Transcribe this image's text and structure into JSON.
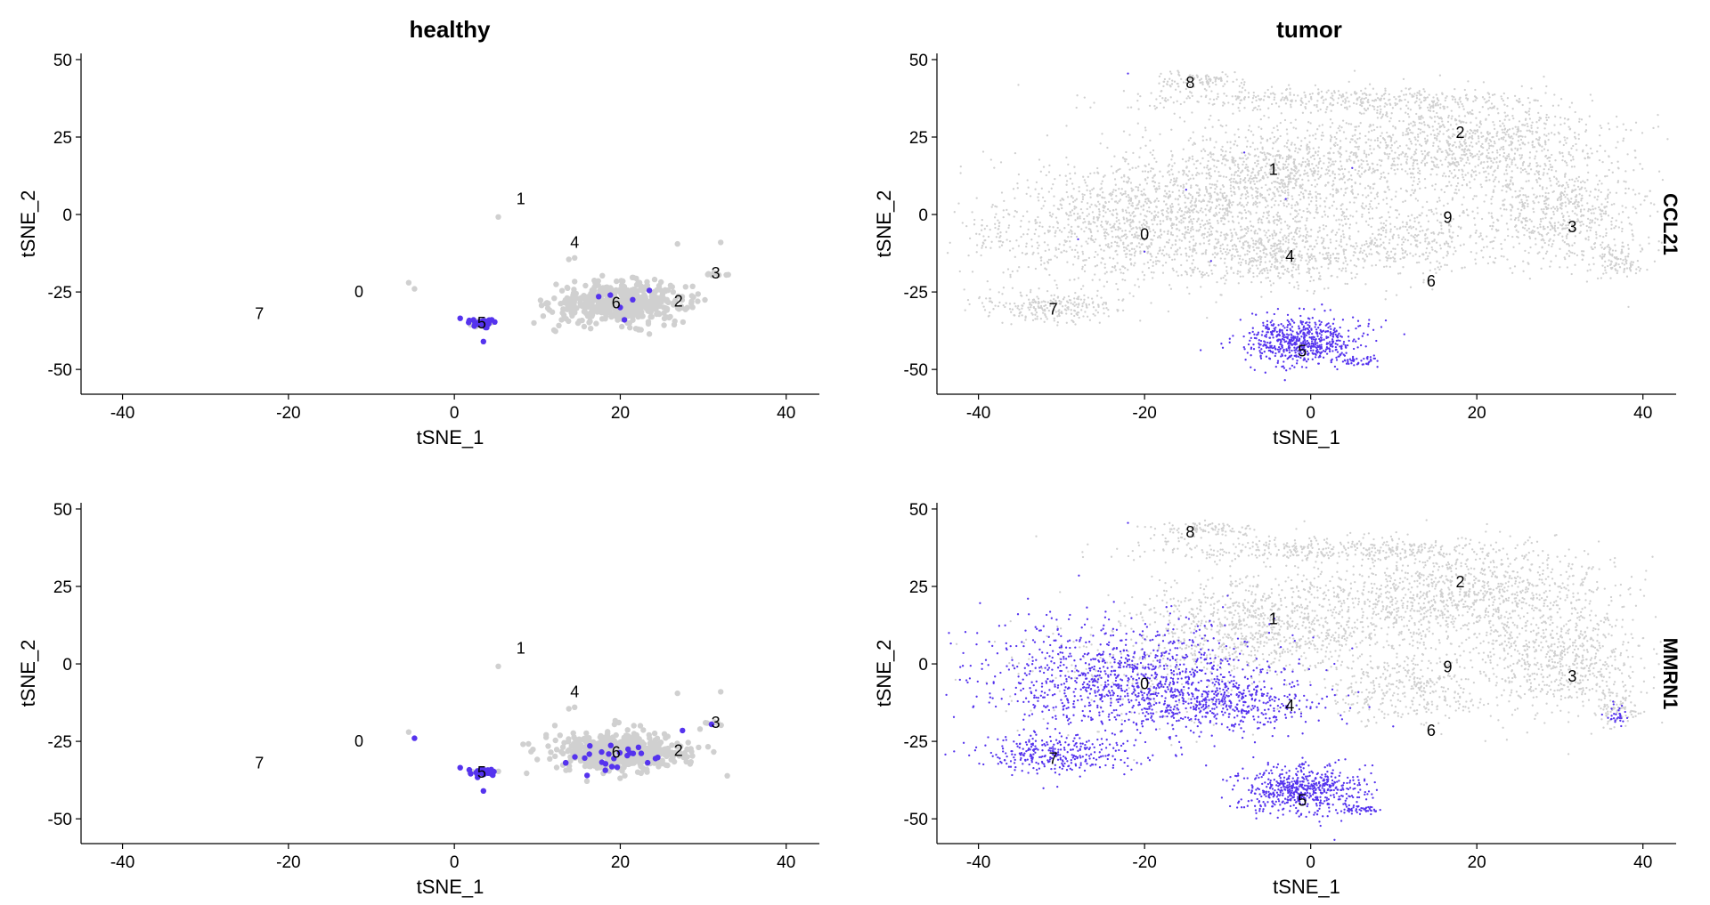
{
  "columns": [
    "healthy",
    "tumor"
  ],
  "rows": [
    "CCL21",
    "MMRN1"
  ],
  "colors": {
    "expressed": "#5533ee",
    "not_expressed": "#d0d0d0"
  },
  "chart_data": [
    {
      "type": "scatter",
      "row": 0,
      "col": 0,
      "title": "healthy",
      "row_label": "",
      "xlabel": "tSNE_1",
      "ylabel": "tSNE_2",
      "xlim": [
        -45,
        44
      ],
      "ylim": [
        -58,
        52
      ],
      "xticks": [
        -40,
        -20,
        0,
        20,
        40
      ],
      "yticks": [
        50,
        25,
        0,
        -25,
        -50
      ],
      "grid": false,
      "point_size": "large",
      "clusters": [
        {
          "label": "0",
          "x": -11.5,
          "y": -25
        },
        {
          "label": "1",
          "x": 8,
          "y": 5
        },
        {
          "label": "2",
          "x": 27,
          "y": -28
        },
        {
          "label": "3",
          "x": 31.5,
          "y": -19
        },
        {
          "label": "4",
          "x": 14.5,
          "y": -9
        },
        {
          "label": "5",
          "x": 3.3,
          "y": -35
        },
        {
          "label": "6",
          "x": 19.5,
          "y": -28.5
        },
        {
          "label": "7",
          "x": -23.5,
          "y": -32
        }
      ],
      "gray_groups": [
        {
          "cx": 20,
          "cy": -28.5,
          "sx": 4,
          "sy": 3.2,
          "n": 500
        },
        {
          "cx": 3.3,
          "cy": -35,
          "sx": 0.8,
          "sy": 0.5,
          "n": 25
        },
        {
          "cx": 31.5,
          "cy": -19,
          "sx": 0.8,
          "sy": 0.6,
          "n": 8
        }
      ],
      "gray_points": [
        [
          5.3,
          -0.8
        ],
        [
          14.5,
          -14
        ],
        [
          26.9,
          -9.5
        ],
        [
          32.1,
          -9
        ],
        [
          -5.5,
          -22
        ],
        [
          -4.8,
          -24
        ],
        [
          13.8,
          -14.5
        ]
      ],
      "expr_groups": [
        {
          "cx": 3.3,
          "cy": -35,
          "sx": 0.9,
          "sy": 0.5,
          "n": 30
        }
      ],
      "expr_points": [
        [
          3.5,
          -41
        ],
        [
          0.7,
          -33.5
        ],
        [
          1.8,
          -34.2
        ],
        [
          2.4,
          -36
        ],
        [
          4.5,
          -34
        ],
        [
          3.9,
          -36.5
        ],
        [
          17.4,
          -26.5
        ],
        [
          20,
          -30
        ],
        [
          21.5,
          -27.5
        ],
        [
          23.5,
          -24.5
        ],
        [
          18.8,
          -26
        ],
        [
          20.5,
          -34
        ]
      ]
    },
    {
      "type": "scatter",
      "row": 0,
      "col": 1,
      "title": "tumor",
      "row_label": "CCL21",
      "xlabel": "tSNE_1",
      "ylabel": "tSNE_2",
      "xlim": [
        -45,
        44
      ],
      "ylim": [
        -58,
        52
      ],
      "xticks": [
        -40,
        -20,
        0,
        20,
        40
      ],
      "yticks": [
        50,
        25,
        0,
        -25,
        -50
      ],
      "grid": false,
      "point_size": "small",
      "clusters": [
        {
          "label": "0",
          "x": -20,
          "y": -6.5
        },
        {
          "label": "1",
          "x": -4.5,
          "y": 14.5
        },
        {
          "label": "2",
          "x": 18,
          "y": 26.5
        },
        {
          "label": "3",
          "x": 31.5,
          "y": -4
        },
        {
          "label": "4",
          "x": -2.5,
          "y": -13.5
        },
        {
          "label": "5",
          "x": -1,
          "y": -44
        },
        {
          "label": "6",
          "x": 14.5,
          "y": -21.5
        },
        {
          "label": "7",
          "x": -31,
          "y": -30.5
        },
        {
          "label": "8",
          "x": -14.5,
          "y": 42.5
        },
        {
          "label": "9",
          "x": 16.5,
          "y": -1
        }
      ],
      "gray_groups": [
        {
          "cx": -20,
          "cy": -3,
          "sx": 9,
          "sy": 10,
          "n": 1300
        },
        {
          "cx": -5,
          "cy": 13,
          "sx": 8,
          "sy": 8,
          "n": 1000
        },
        {
          "cx": 18,
          "cy": 22,
          "sx": 9,
          "sy": 8,
          "n": 1100
        },
        {
          "cx": 30,
          "cy": 0,
          "sx": 5,
          "sy": 8,
          "n": 600
        },
        {
          "cx": -3,
          "cy": -13,
          "sx": 5,
          "sy": 5,
          "n": 450
        },
        {
          "cx": 12,
          "cy": -8,
          "sx": 5,
          "sy": 6,
          "n": 350
        },
        {
          "cx": 37,
          "cy": -15,
          "sx": 1.5,
          "sy": 3,
          "n": 100
        },
        {
          "cx": -31,
          "cy": -30,
          "sx": 4,
          "sy": 2.5,
          "n": 250
        },
        {
          "cx": -13,
          "cy": 43.5,
          "sx": 3,
          "sy": 1.3,
          "n": 100
        },
        {
          "cx": 2,
          "cy": 37,
          "sx": 12,
          "sy": 2,
          "n": 400
        },
        {
          "cx": -38,
          "cy": -6,
          "sx": 1.5,
          "sy": 3,
          "n": 40
        }
      ],
      "gray_points": [],
      "expr_groups": [
        {
          "cx": -1,
          "cy": -41,
          "sx": 3.6,
          "sy": 3.8,
          "n": 600
        },
        {
          "cx": 6,
          "cy": -47,
          "sx": 1.3,
          "sy": 0.8,
          "n": 40
        }
      ],
      "expr_points": [
        [
          -22,
          45.5
        ],
        [
          -20,
          -12
        ],
        [
          -15,
          8
        ],
        [
          -8,
          20
        ],
        [
          -3,
          5
        ],
        [
          5,
          15
        ],
        [
          -28,
          -8
        ],
        [
          -12,
          -15
        ]
      ]
    },
    {
      "type": "scatter",
      "row": 1,
      "col": 0,
      "title": "",
      "row_label": "",
      "xlabel": "tSNE_1",
      "ylabel": "tSNE_2",
      "xlim": [
        -45,
        44
      ],
      "ylim": [
        -58,
        52
      ],
      "xticks": [
        -40,
        -20,
        0,
        20,
        40
      ],
      "yticks": [
        50,
        25,
        0,
        -25,
        -50
      ],
      "grid": false,
      "point_size": "large",
      "clusters": [
        {
          "label": "0",
          "x": -11.5,
          "y": -25
        },
        {
          "label": "1",
          "x": 8,
          "y": 5
        },
        {
          "label": "2",
          "x": 27,
          "y": -28
        },
        {
          "label": "3",
          "x": 31.5,
          "y": -19
        },
        {
          "label": "4",
          "x": 14.5,
          "y": -9
        },
        {
          "label": "5",
          "x": 3.3,
          "y": -35
        },
        {
          "label": "6",
          "x": 19.5,
          "y": -28.5
        },
        {
          "label": "7",
          "x": -23.5,
          "y": -32
        }
      ],
      "gray_groups": [
        {
          "cx": 20,
          "cy": -28.5,
          "sx": 4,
          "sy": 3.2,
          "n": 500
        },
        {
          "cx": 3.3,
          "cy": -35,
          "sx": 0.8,
          "sy": 0.5,
          "n": 25
        },
        {
          "cx": 31.5,
          "cy": -19,
          "sx": 0.8,
          "sy": 0.6,
          "n": 8
        }
      ],
      "gray_points": [
        [
          5.3,
          -0.8
        ],
        [
          14.5,
          -14
        ],
        [
          26.9,
          -9.5
        ],
        [
          32.1,
          -9
        ],
        [
          -5.5,
          -22
        ],
        [
          13.8,
          -14.5
        ]
      ],
      "expr_groups": [
        {
          "cx": 3.3,
          "cy": -35,
          "sx": 0.9,
          "sy": 0.5,
          "n": 30
        },
        {
          "cx": 18.5,
          "cy": -30.5,
          "sx": 2.5,
          "sy": 2.5,
          "n": 25
        }
      ],
      "expr_points": [
        [
          -4.8,
          -24
        ],
        [
          3.5,
          -41
        ],
        [
          0.7,
          -33.5
        ],
        [
          1.8,
          -34.2
        ],
        [
          4.5,
          -34.5
        ],
        [
          27.5,
          -21.5
        ],
        [
          31,
          -19.5
        ],
        [
          16,
          -36
        ]
      ]
    },
    {
      "type": "scatter",
      "row": 1,
      "col": 1,
      "title": "",
      "row_label": "MMRN1",
      "xlabel": "tSNE_1",
      "ylabel": "tSNE_2",
      "xlim": [
        -45,
        44
      ],
      "ylim": [
        -58,
        52
      ],
      "xticks": [
        -40,
        -20,
        0,
        20,
        40
      ],
      "yticks": [
        50,
        25,
        0,
        -25,
        -50
      ],
      "grid": false,
      "point_size": "small",
      "clusters": [
        {
          "label": "0",
          "x": -20,
          "y": -6.5
        },
        {
          "label": "1",
          "x": -4.5,
          "y": 14.5
        },
        {
          "label": "2",
          "x": 18,
          "y": 26.5
        },
        {
          "label": "3",
          "x": 31.5,
          "y": -4
        },
        {
          "label": "4",
          "x": -2.5,
          "y": -13.5
        },
        {
          "label": "5",
          "x": -1,
          "y": -44
        },
        {
          "label": "6",
          "x": 14.5,
          "y": -21.5
        },
        {
          "label": "7",
          "x": -31,
          "y": -30.5
        },
        {
          "label": "8",
          "x": -14.5,
          "y": 42.5
        },
        {
          "label": "9",
          "x": 16.5,
          "y": -1
        }
      ],
      "gray_groups": [
        {
          "cx": -5,
          "cy": 13,
          "sx": 8,
          "sy": 8,
          "n": 900
        },
        {
          "cx": 18,
          "cy": 22,
          "sx": 9,
          "sy": 8,
          "n": 1100
        },
        {
          "cx": 30,
          "cy": 0,
          "sx": 5,
          "sy": 8,
          "n": 600
        },
        {
          "cx": 12,
          "cy": -8,
          "sx": 5,
          "sy": 6,
          "n": 350
        },
        {
          "cx": 37,
          "cy": -15,
          "sx": 1.5,
          "sy": 3,
          "n": 80
        },
        {
          "cx": -13,
          "cy": 43.5,
          "sx": 3,
          "sy": 1.3,
          "n": 100
        },
        {
          "cx": 2,
          "cy": 37,
          "sx": 12,
          "sy": 2,
          "n": 400
        },
        {
          "cx": -20,
          "cy": -3,
          "sx": 9,
          "sy": 10,
          "n": 250
        }
      ],
      "gray_points": [],
      "expr_groups": [
        {
          "cx": -22,
          "cy": -5,
          "sx": 9,
          "sy": 9,
          "n": 1100
        },
        {
          "cx": -10,
          "cy": -13,
          "sx": 6,
          "sy": 4,
          "n": 350
        },
        {
          "cx": -31,
          "cy": -29,
          "sx": 5,
          "sy": 3,
          "n": 300
        },
        {
          "cx": -1,
          "cy": -41,
          "sx": 3.6,
          "sy": 3.8,
          "n": 600
        },
        {
          "cx": 6,
          "cy": -47,
          "sx": 1.3,
          "sy": 0.8,
          "n": 40
        },
        {
          "cx": 37,
          "cy": -17,
          "sx": 0.8,
          "sy": 1.5,
          "n": 30
        }
      ],
      "expr_points": [
        [
          -22,
          45.5
        ],
        [
          -10,
          22
        ],
        [
          -5,
          10
        ],
        [
          5,
          5
        ],
        [
          -15,
          15
        ]
      ]
    }
  ]
}
